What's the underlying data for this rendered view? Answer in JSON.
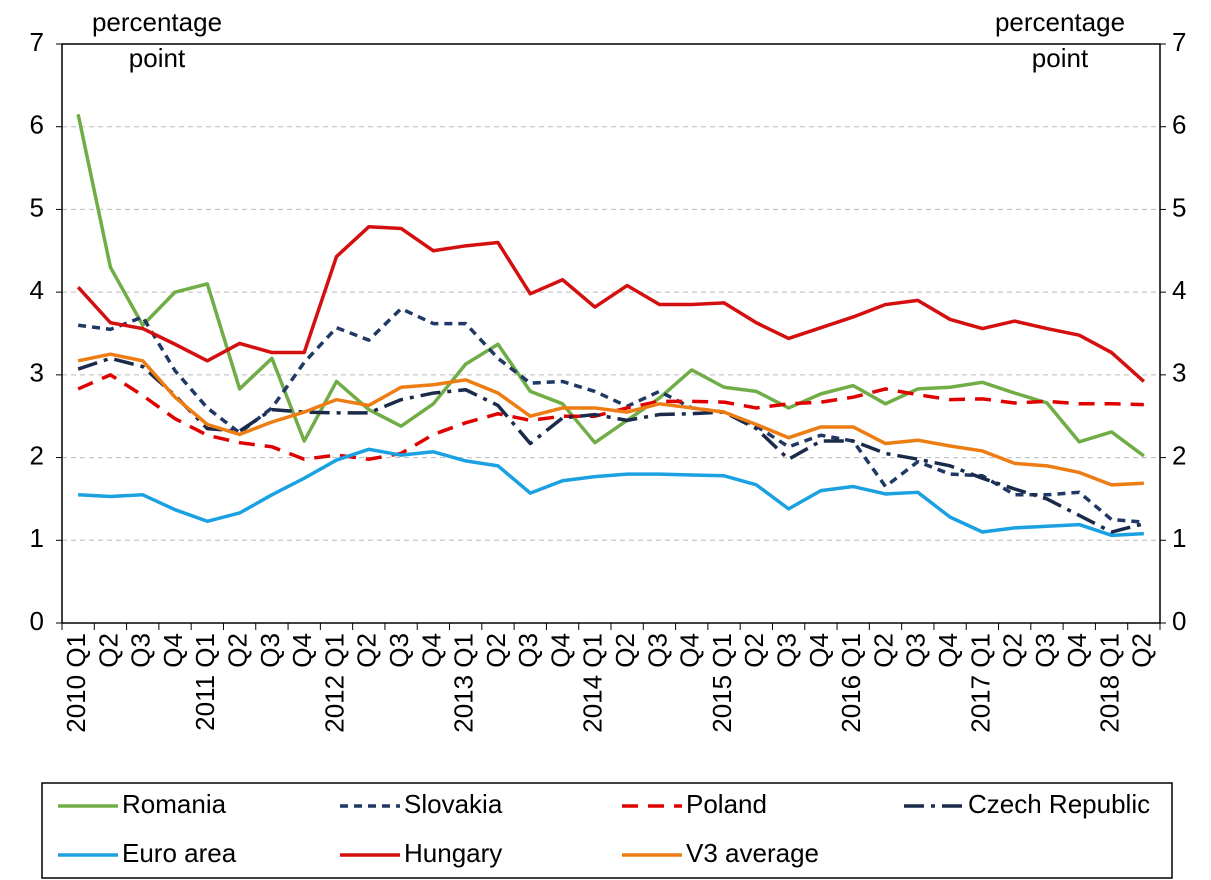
{
  "chart_data": {
    "type": "line",
    "y_label": "percentage point",
    "y2_label": "percentage point",
    "categories": [
      "2010 Q1",
      "Q2",
      "Q3",
      "Q4",
      "2011 Q1",
      "Q2",
      "Q3",
      "Q4",
      "2012 Q1",
      "Q2",
      "Q3",
      "Q4",
      "2013 Q1",
      "Q2",
      "Q3",
      "Q4",
      "2014 Q1",
      "Q2",
      "Q3",
      "Q4",
      "2015 Q1",
      "Q2",
      "Q3",
      "Q4",
      "2016 Q1",
      "Q2",
      "Q3",
      "Q4",
      "2017 Q1",
      "Q2",
      "Q3",
      "Q4",
      "2018 Q1",
      "Q2"
    ],
    "series": [
      {
        "name": "Romania",
        "color": "#70ad47",
        "dash": "solid",
        "values": [
          6.15,
          4.3,
          3.6,
          4.0,
          4.1,
          2.83,
          3.2,
          2.2,
          2.92,
          2.58,
          2.38,
          2.65,
          3.13,
          3.37,
          2.8,
          2.65,
          2.18,
          2.45,
          2.72,
          3.06,
          2.85,
          2.8,
          2.6,
          2.77,
          2.87,
          2.65,
          2.83,
          2.85,
          2.91,
          2.78,
          2.66,
          2.19,
          2.31,
          2.02
        ]
      },
      {
        "name": "Slovakia",
        "color": "#1f3864",
        "dash": "dashed",
        "values": [
          3.6,
          3.55,
          3.7,
          3.05,
          2.6,
          2.3,
          2.6,
          3.15,
          3.57,
          3.42,
          3.8,
          3.62,
          3.62,
          3.2,
          2.9,
          2.92,
          2.8,
          2.62,
          2.8,
          2.6,
          2.55,
          2.38,
          2.13,
          2.27,
          2.2,
          1.65,
          1.95,
          1.8,
          1.78,
          1.55,
          1.55,
          1.58,
          1.25,
          1.22
        ]
      },
      {
        "name": "Poland",
        "color": "#e00000",
        "dash": "longdash",
        "values": [
          2.83,
          3.0,
          2.75,
          2.47,
          2.27,
          2.18,
          2.13,
          1.98,
          2.03,
          1.98,
          2.05,
          2.28,
          2.42,
          2.53,
          2.45,
          2.5,
          2.5,
          2.6,
          2.68,
          2.68,
          2.67,
          2.6,
          2.65,
          2.67,
          2.73,
          2.83,
          2.76,
          2.7,
          2.71,
          2.66,
          2.68,
          2.65,
          2.65,
          2.64
        ]
      },
      {
        "name": "Czech Republic",
        "color": "#1a2a4a",
        "dash": "dashdot",
        "values": [
          3.07,
          3.2,
          3.1,
          2.75,
          2.35,
          2.32,
          2.58,
          2.55,
          2.54,
          2.54,
          2.7,
          2.78,
          2.82,
          2.63,
          2.17,
          2.48,
          2.52,
          2.45,
          2.52,
          2.53,
          2.55,
          2.35,
          1.98,
          2.2,
          2.2,
          2.05,
          1.98,
          1.9,
          1.75,
          1.62,
          1.5,
          1.3,
          1.1,
          1.2
        ]
      },
      {
        "name": "Euro area",
        "color": "#1ba1e2",
        "dash": "solid",
        "values": [
          1.55,
          1.53,
          1.55,
          1.37,
          1.23,
          1.33,
          1.55,
          1.75,
          1.97,
          2.1,
          2.03,
          2.07,
          1.96,
          1.9,
          1.57,
          1.72,
          1.77,
          1.8,
          1.8,
          1.79,
          1.78,
          1.67,
          1.38,
          1.6,
          1.65,
          1.56,
          1.58,
          1.28,
          1.1,
          1.15,
          1.17,
          1.19,
          1.06,
          1.08
        ]
      },
      {
        "name": "Hungary",
        "color": "#d40f0f",
        "dash": "solid",
        "values": [
          4.06,
          3.63,
          3.56,
          3.37,
          3.17,
          3.38,
          3.27,
          3.27,
          4.43,
          4.79,
          4.77,
          4.5,
          4.56,
          4.6,
          3.98,
          4.15,
          3.82,
          4.08,
          3.85,
          3.85,
          3.87,
          3.63,
          3.44,
          3.57,
          3.7,
          3.85,
          3.9,
          3.67,
          3.56,
          3.65,
          3.56,
          3.48,
          3.27,
          2.92
        ]
      },
      {
        "name": "V3 average",
        "color": "#ed7d13",
        "dash": "solid",
        "values": [
          3.17,
          3.25,
          3.17,
          2.73,
          2.4,
          2.28,
          2.43,
          2.55,
          2.7,
          2.63,
          2.85,
          2.88,
          2.94,
          2.78,
          2.5,
          2.6,
          2.6,
          2.55,
          2.65,
          2.6,
          2.55,
          2.4,
          2.24,
          2.37,
          2.37,
          2.17,
          2.21,
          2.14,
          2.08,
          1.93,
          1.9,
          1.82,
          1.67,
          1.69
        ]
      }
    ],
    "ylim": [
      0,
      7
    ],
    "yticks": [
      0,
      1,
      2,
      3,
      4,
      5,
      6,
      7
    ],
    "y2lim": [
      0,
      7
    ],
    "y2ticks": [
      0,
      1,
      2,
      3,
      4,
      5,
      6,
      7
    ],
    "grid": true,
    "legend": "bottom"
  }
}
